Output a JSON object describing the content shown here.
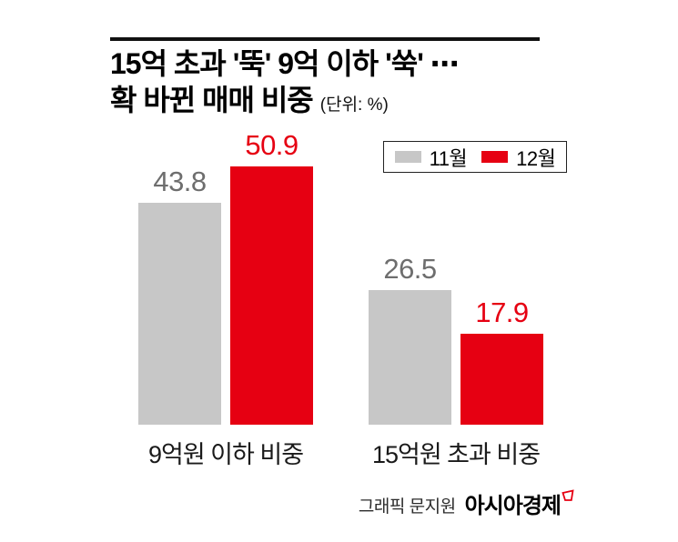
{
  "header": {
    "title_line1": "15억 초과 '뚝' 9억 이하 '쑥' ⋯",
    "title_line2": "확 바뀐 매매 비중",
    "unit_label": "(단위: %)"
  },
  "legend": {
    "items": [
      {
        "label": "11월",
        "color": "#c7c7c7"
      },
      {
        "label": "12월",
        "color": "#e60012"
      }
    ]
  },
  "chart_data": {
    "type": "bar",
    "title": "확 바뀐 매매 비중",
    "unit": "%",
    "categories": [
      "9억원 이하 비중",
      "15억원 초과 비중"
    ],
    "series": [
      {
        "name": "11월",
        "color": "#c7c7c7",
        "label_color": "#6e6e6e",
        "values": [
          43.8,
          26.5
        ]
      },
      {
        "name": "12월",
        "color": "#e60012",
        "label_color": "#e60012",
        "values": [
          50.9,
          17.9
        ]
      }
    ],
    "ylim": [
      0,
      55
    ],
    "grid": false,
    "axis_lines": false,
    "legend_position": "top-right",
    "value_labels": true
  },
  "footer": {
    "credit": "그래픽 문지원",
    "brand": "아시아경제",
    "brand_mark_color": "#e60012"
  }
}
